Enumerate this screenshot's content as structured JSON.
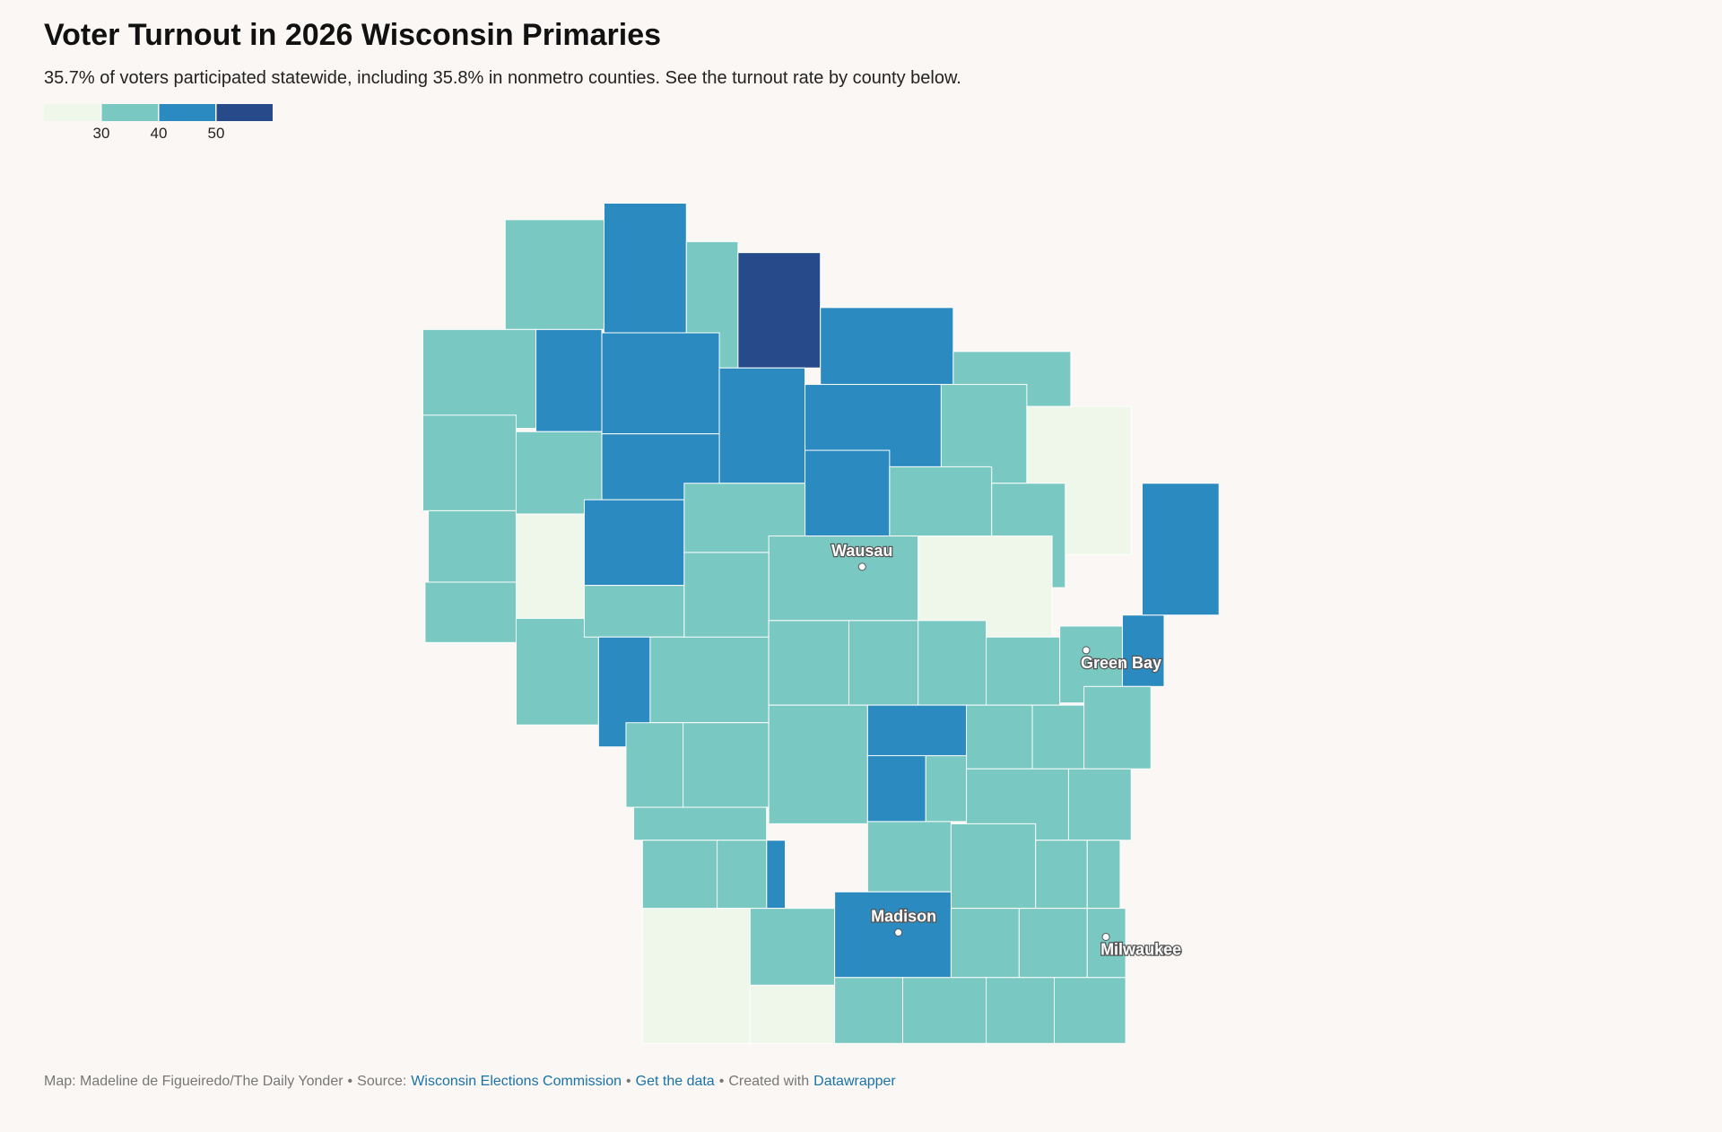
{
  "chart_data": {
    "type": "choropleth",
    "title": "Voter Turnout in 2026 Wisconsin Primaries",
    "subtitle": "35.7% of voters participated statewide, including 35.8% in nonmetro counties. See the turnout rate by county below.",
    "legend": {
      "ticks": [
        30,
        40,
        50
      ],
      "colors": [
        "#eef7ea",
        "#79c8c2",
        "#2b8abf",
        "#274a8a"
      ]
    },
    "values": [
      35,
      45,
      35,
      55,
      45,
      35,
      35,
      45,
      45,
      45,
      45,
      35,
      25,
      35,
      35,
      45,
      45,
      35,
      35,
      35,
      25,
      45,
      35,
      35,
      25,
      35,
      35,
      35,
      35,
      45,
      35,
      35,
      35,
      35,
      35,
      35,
      45,
      45,
      35,
      35,
      35,
      45,
      35,
      35,
      35,
      45,
      35,
      35,
      35,
      35,
      45,
      35,
      35,
      35,
      35,
      35,
      35,
      25,
      35,
      45,
      35,
      35,
      35,
      25,
      35,
      35,
      35,
      35
    ],
    "cities": [
      "Wausau",
      "Green Bay",
      "Madison",
      "Milwaukee"
    ],
    "footer": {
      "credit": "Map: Madeline de Figueiredo/The Daily Yonder",
      "separator": "•",
      "source_label": "Source:",
      "source": "Wisconsin Elections Commission",
      "get_data": "Get the data",
      "created": "Created with",
      "tool": "Datawrapper"
    }
  }
}
